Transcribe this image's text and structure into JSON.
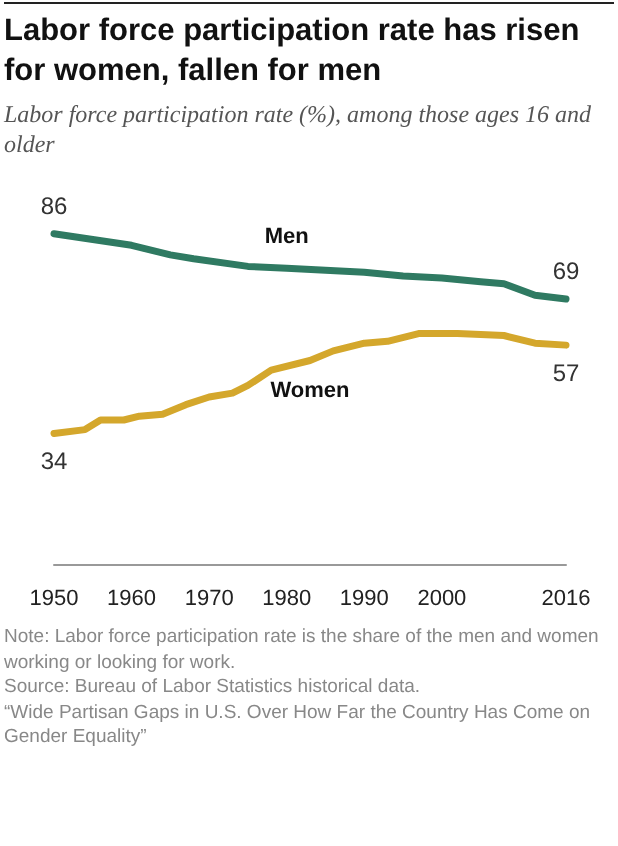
{
  "chart_data": {
    "type": "line",
    "title": "Labor force participation rate has risen for women, fallen for men",
    "subtitle": "Labor force participation rate (%), among those ages 16 and older",
    "xlim": [
      1950,
      2016
    ],
    "xticks": [
      1950,
      1960,
      1970,
      1980,
      1990,
      2000,
      2016
    ],
    "grid": false,
    "marker": "none",
    "line_style": "solid",
    "series": [
      {
        "name": "Men",
        "color": "#2f7a62",
        "x": [
          1950,
          1955,
          1960,
          1965,
          1968,
          1975,
          1980,
          1985,
          1990,
          1995,
          2000,
          2005,
          2008,
          2012,
          2016
        ],
        "values": [
          86,
          84.5,
          83,
          80.5,
          79.5,
          77.5,
          77,
          76.5,
          76,
          75,
          74.5,
          73.5,
          73,
          70,
          69
        ],
        "value_labels": [
          "86",
          null,
          null,
          null,
          null,
          null,
          null,
          null,
          null,
          null,
          null,
          null,
          null,
          null,
          "69"
        ]
      },
      {
        "name": "Women",
        "color": "#d4a72c",
        "x": [
          1950,
          1954,
          1956,
          1959,
          1961,
          1964,
          1967,
          1970,
          1973,
          1975,
          1978,
          1983,
          1986,
          1990,
          1993,
          1997,
          2002,
          2008,
          2012,
          2016
        ],
        "values": [
          34,
          35,
          37.5,
          37.5,
          38.5,
          39,
          41.5,
          43.5,
          44.5,
          46.5,
          50.5,
          53,
          55.5,
          57.5,
          58,
          60,
          60,
          59.5,
          57.5,
          57
        ],
        "value_labels": [
          "34",
          null,
          null,
          null,
          null,
          null,
          null,
          null,
          null,
          null,
          null,
          null,
          null,
          null,
          null,
          null,
          null,
          null,
          null,
          "57"
        ]
      }
    ],
    "annotations": [
      "Note: Labor force participation rate is the share of the men and women working or looking for work.",
      "Source: Bureau of Labor Statistics historical data.",
      "“Wide Partisan Gaps in U.S. Over How Far the Country Has Come on Gender Equality”"
    ]
  }
}
